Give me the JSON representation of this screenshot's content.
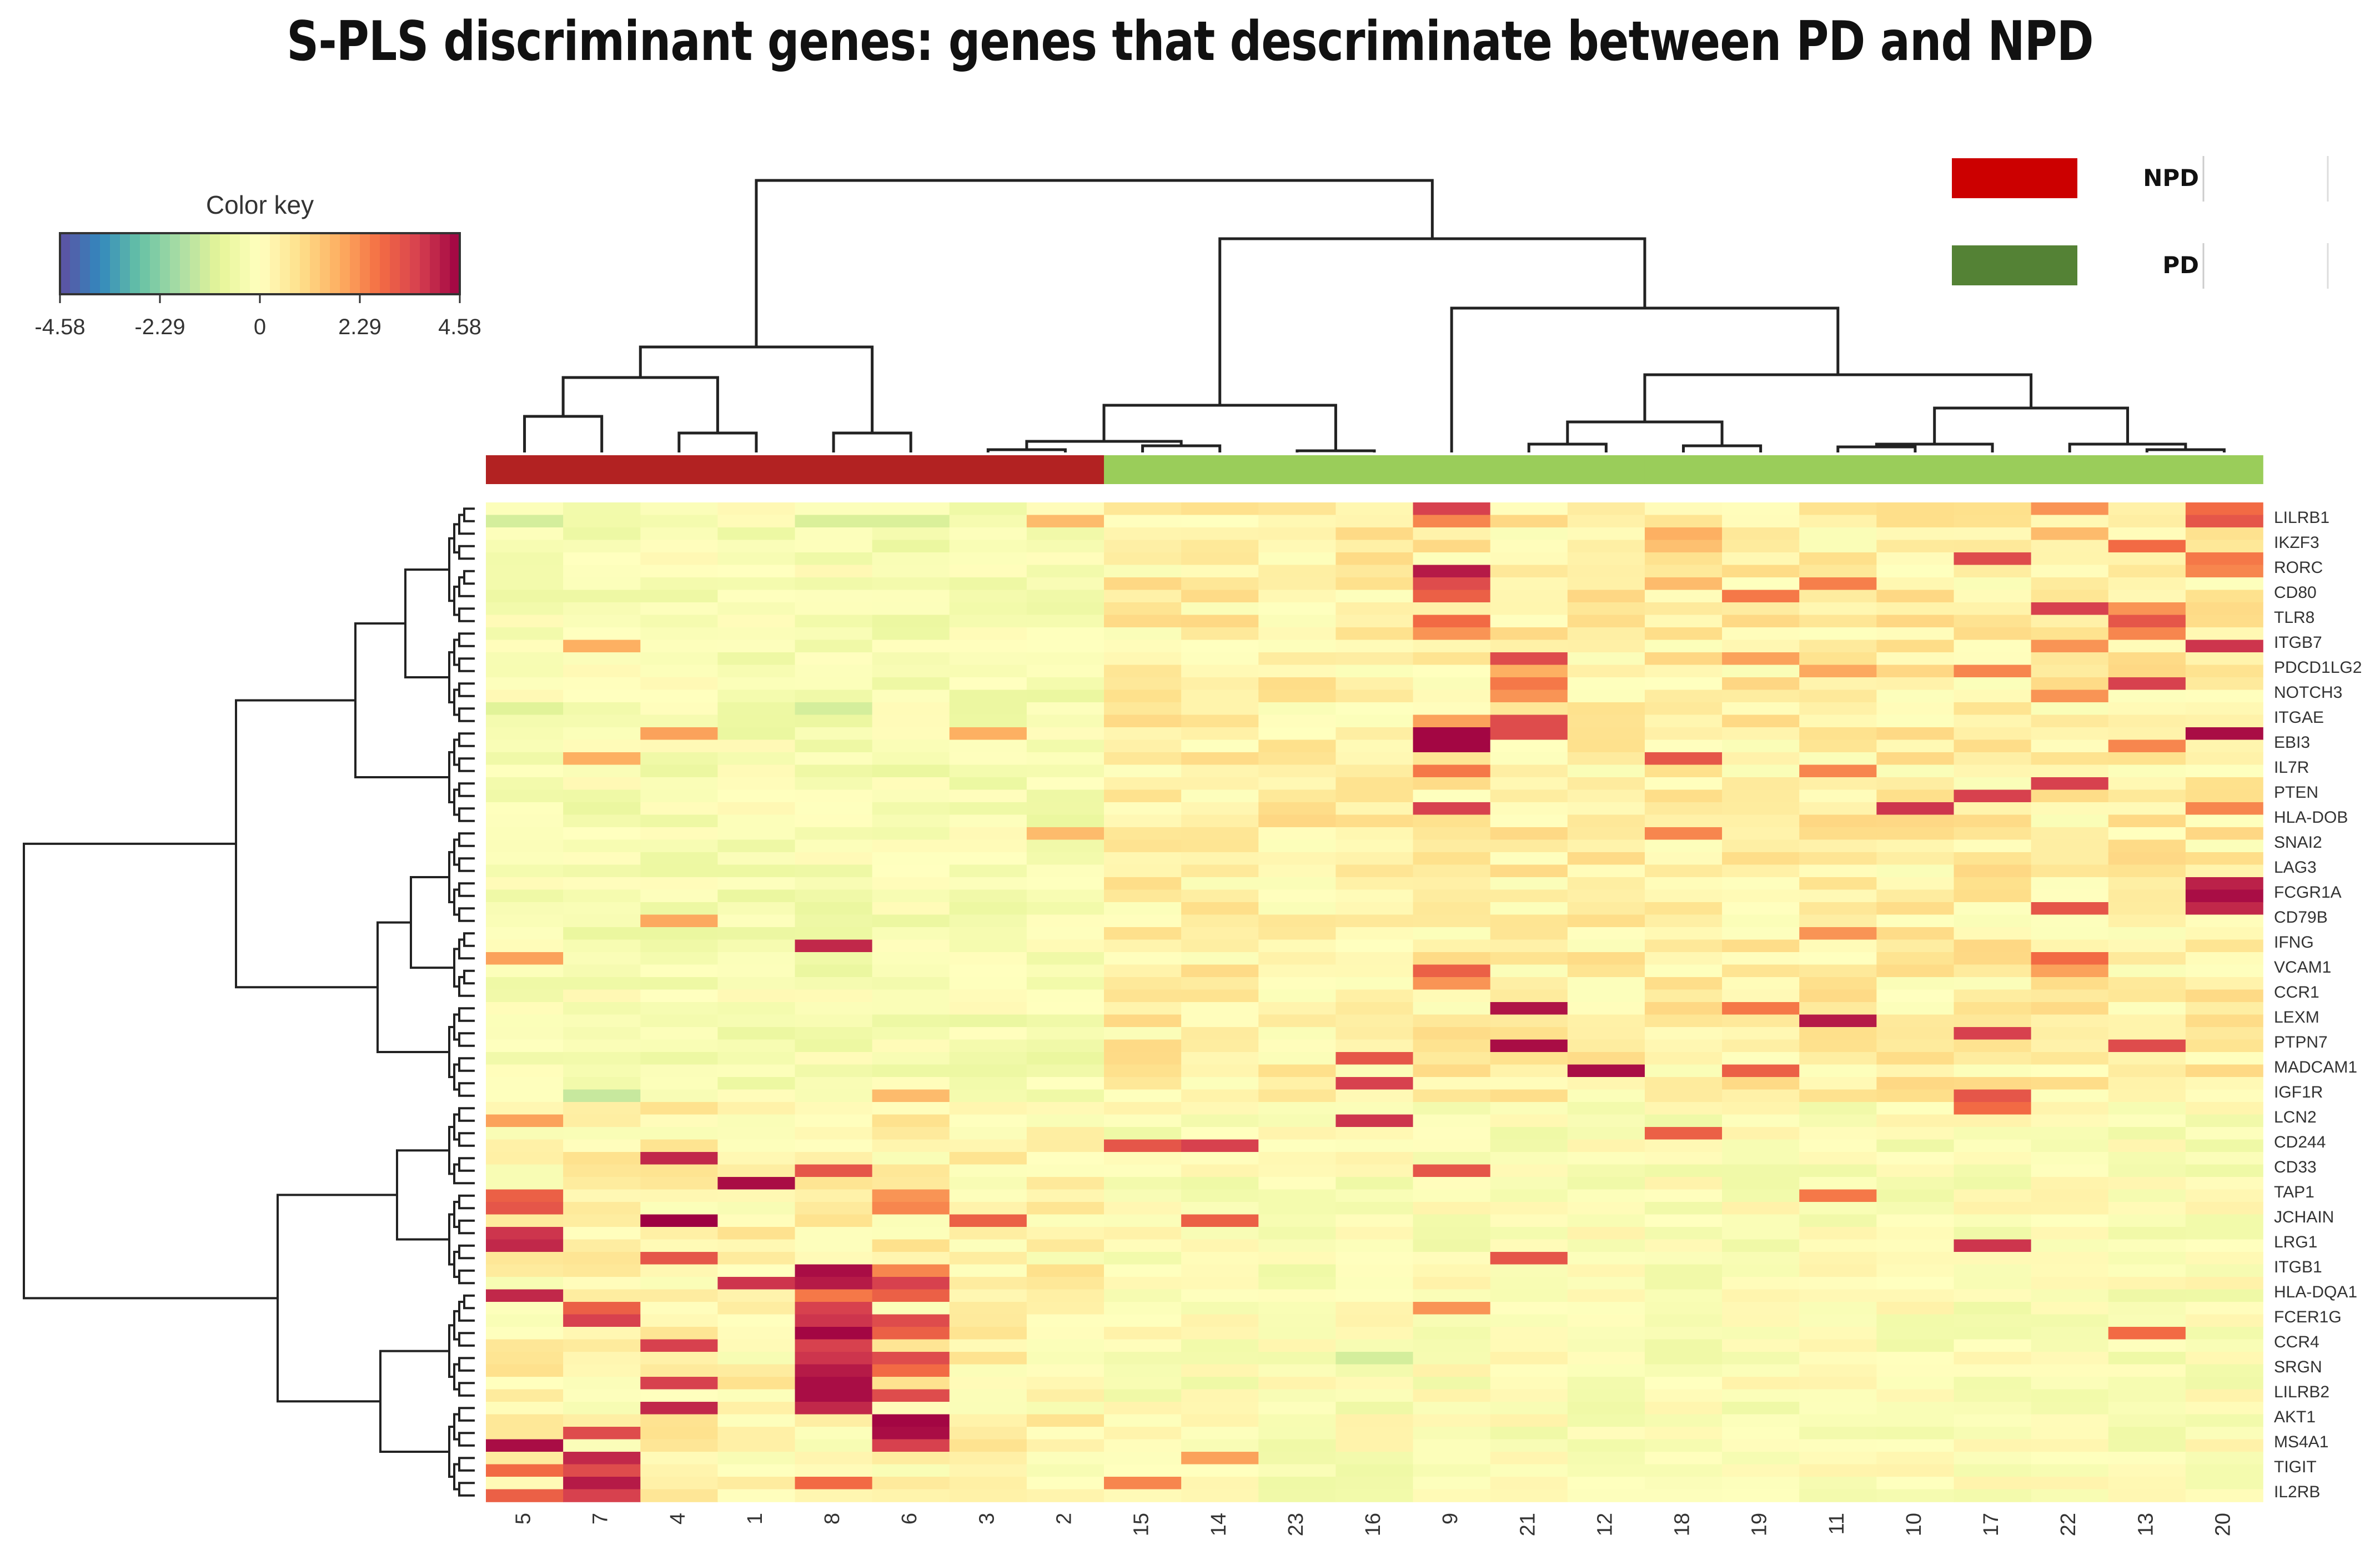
{
  "title": "S-PLS discriminant genes: genes that descriminate between PD and NPD",
  "color_key": {
    "title": "Color key",
    "ticks": [
      "-4.58",
      "-2.29",
      "0",
      "2.29",
      "4.58"
    ],
    "min": -4.58,
    "max": 4.58,
    "palette": [
      "#5e4fa2",
      "#3288bd",
      "#66c2a5",
      "#abdda4",
      "#e6f598",
      "#ffffbf",
      "#fee08b",
      "#fdae61",
      "#f46d43",
      "#d53e4f",
      "#9e0142"
    ]
  },
  "legend": {
    "items": [
      {
        "label": "NPD",
        "color": "#cc0000"
      },
      {
        "label": "PD",
        "color": "#548235"
      }
    ]
  },
  "chart_data": {
    "type": "heatmap",
    "title": "S-PLS discriminant genes: genes that descriminate between PD and NPD",
    "columns": [
      "5",
      "7",
      "4",
      "1",
      "8",
      "6",
      "3",
      "2",
      "15",
      "14",
      "23",
      "16",
      "9",
      "21",
      "12",
      "18",
      "19",
      "11",
      "10",
      "17",
      "22",
      "13",
      "20"
    ],
    "column_groups": [
      "NPD",
      "NPD",
      "NPD",
      "NPD",
      "NPD",
      "NPD",
      "NPD",
      "NPD",
      "PD",
      "PD",
      "PD",
      "PD",
      "PD",
      "PD",
      "PD",
      "PD",
      "PD",
      "PD",
      "PD",
      "PD",
      "PD",
      "PD",
      "PD"
    ],
    "group_colors": {
      "NPD": "#b22222",
      "PD": "#9acd5a"
    },
    "row_labels": [
      "LILRB1",
      "IKZF3",
      "RORC",
      "CD80",
      "TLR8",
      "ITGB7",
      "PDCD1LG2",
      "NOTCH3",
      "ITGAE",
      "EBI3",
      "IL7R",
      "PTEN",
      "HLA-DOB",
      "SNAI2",
      "LAG3",
      "FCGR1A",
      "CD79B",
      "IFNG",
      "VCAM1",
      "CCR1",
      "LEXM",
      "PTPN7",
      "MADCAM1",
      "IGF1R",
      "LCN2",
      "CD244",
      "CD33",
      "TAP1",
      "JCHAIN",
      "LRG1",
      "ITGB1",
      "HLA-DQA1",
      "FCER1G",
      "CCR4",
      "SRGN",
      "LILRB2",
      "AKT1",
      "MS4A1",
      "TIGIT",
      "IL2RB"
    ],
    "row_count": 80,
    "value_range": [
      -4.58,
      4.58
    ],
    "strong_cells": [
      {
        "row": 0,
        "col": 12,
        "value": 3.6
      },
      {
        "row": 0,
        "col": 20,
        "value": 2.2
      },
      {
        "row": 0,
        "col": 22,
        "value": 2.8
      },
      {
        "row": 1,
        "col": 0,
        "value": -1.2
      },
      {
        "row": 1,
        "col": 4,
        "value": -1.1
      },
      {
        "row": 1,
        "col": 5,
        "value": -1.1
      },
      {
        "row": 1,
        "col": 7,
        "value": 1.6
      },
      {
        "row": 1,
        "col": 12,
        "value": 2.4
      },
      {
        "row": 1,
        "col": 22,
        "value": 3.2
      },
      {
        "row": 2,
        "col": 15,
        "value": 1.8
      },
      {
        "row": 2,
        "col": 20,
        "value": 1.6
      },
      {
        "row": 3,
        "col": 21,
        "value": 2.8
      },
      {
        "row": 3,
        "col": 15,
        "value": 1.5
      },
      {
        "row": 4,
        "col": 19,
        "value": 3.4
      },
      {
        "row": 4,
        "col": 22,
        "value": 2.6
      },
      {
        "row": 5,
        "col": 12,
        "value": 4.2
      },
      {
        "row": 5,
        "col": 22,
        "value": 2.4
      },
      {
        "row": 6,
        "col": 12,
        "value": 3.4
      },
      {
        "row": 6,
        "col": 17,
        "value": 2.5
      },
      {
        "row": 6,
        "col": 15,
        "value": 1.6
      },
      {
        "row": 7,
        "col": 16,
        "value": 2.6
      },
      {
        "row": 7,
        "col": 12,
        "value": 3.0
      },
      {
        "row": 8,
        "col": 20,
        "value": 3.6
      },
      {
        "row": 8,
        "col": 21,
        "value": 2.2
      },
      {
        "row": 9,
        "col": 12,
        "value": 2.8
      },
      {
        "row": 9,
        "col": 21,
        "value": 3.2
      },
      {
        "row": 10,
        "col": 12,
        "value": 2.2
      },
      {
        "row": 10,
        "col": 21,
        "value": 2.4
      },
      {
        "row": 11,
        "col": 1,
        "value": 1.8
      },
      {
        "row": 11,
        "col": 20,
        "value": 2.2
      },
      {
        "row": 11,
        "col": 22,
        "value": 3.8
      },
      {
        "row": 12,
        "col": 13,
        "value": 3.4
      },
      {
        "row": 12,
        "col": 16,
        "value": 2.0
      },
      {
        "row": 13,
        "col": 13,
        "value": 1.8
      },
      {
        "row": 13,
        "col": 17,
        "value": 1.9
      },
      {
        "row": 13,
        "col": 19,
        "value": 2.4
      },
      {
        "row": 14,
        "col": 13,
        "value": 2.6
      },
      {
        "row": 14,
        "col": 21,
        "value": 3.6
      },
      {
        "row": 15,
        "col": 13,
        "value": 2.2
      },
      {
        "row": 15,
        "col": 20,
        "value": 2.2
      },
      {
        "row": 16,
        "col": 0,
        "value": -1.0
      },
      {
        "row": 16,
        "col": 4,
        "value": -1.2
      },
      {
        "row": 17,
        "col": 13,
        "value": 3.4
      },
      {
        "row": 17,
        "col": 12,
        "value": 2.0
      },
      {
        "row": 18,
        "col": 2,
        "value": 2.0
      },
      {
        "row": 18,
        "col": 6,
        "value": 1.8
      },
      {
        "row": 18,
        "col": 12,
        "value": 4.5
      },
      {
        "row": 18,
        "col": 13,
        "value": 3.4
      },
      {
        "row": 18,
        "col": 22,
        "value": 4.4
      },
      {
        "row": 19,
        "col": 12,
        "value": 4.5
      },
      {
        "row": 19,
        "col": 21,
        "value": 2.4
      },
      {
        "row": 20,
        "col": 1,
        "value": 1.8
      },
      {
        "row": 20,
        "col": 15,
        "value": 3.2
      },
      {
        "row": 21,
        "col": 12,
        "value": 2.6
      },
      {
        "row": 21,
        "col": 17,
        "value": 2.4
      },
      {
        "row": 22,
        "col": 20,
        "value": 3.6
      },
      {
        "row": 23,
        "col": 19,
        "value": 3.6
      },
      {
        "row": 24,
        "col": 12,
        "value": 3.6
      },
      {
        "row": 24,
        "col": 18,
        "value": 3.8
      },
      {
        "row": 24,
        "col": 22,
        "value": 2.4
      },
      {
        "row": 26,
        "col": 7,
        "value": 1.6
      },
      {
        "row": 26,
        "col": 15,
        "value": 2.4
      },
      {
        "row": 30,
        "col": 22,
        "value": 4.1
      },
      {
        "row": 31,
        "col": 22,
        "value": 4.4
      },
      {
        "row": 32,
        "col": 20,
        "value": 3.2
      },
      {
        "row": 32,
        "col": 22,
        "value": 4.0
      },
      {
        "row": 33,
        "col": 2,
        "value": 1.9
      },
      {
        "row": 34,
        "col": 17,
        "value": 2.2
      },
      {
        "row": 35,
        "col": 4,
        "value": 4.0
      },
      {
        "row": 36,
        "col": 0,
        "value": 2.0
      },
      {
        "row": 36,
        "col": 20,
        "value": 2.8
      },
      {
        "row": 37,
        "col": 12,
        "value": 3.0
      },
      {
        "row": 37,
        "col": 20,
        "value": 2.0
      },
      {
        "row": 38,
        "col": 12,
        "value": 2.2
      },
      {
        "row": 40,
        "col": 13,
        "value": 4.3
      },
      {
        "row": 40,
        "col": 16,
        "value": 2.6
      },
      {
        "row": 41,
        "col": 17,
        "value": 4.2
      },
      {
        "row": 42,
        "col": 19,
        "value": 3.6
      },
      {
        "row": 43,
        "col": 13,
        "value": 4.4
      },
      {
        "row": 43,
        "col": 21,
        "value": 3.4
      },
      {
        "row": 44,
        "col": 11,
        "value": 3.2
      },
      {
        "row": 45,
        "col": 14,
        "value": 4.4
      },
      {
        "row": 45,
        "col": 16,
        "value": 3.0
      },
      {
        "row": 46,
        "col": 11,
        "value": 3.6
      },
      {
        "row": 47,
        "col": 1,
        "value": -1.4
      },
      {
        "row": 47,
        "col": 19,
        "value": 3.2
      },
      {
        "row": 47,
        "col": 5,
        "value": 1.6
      },
      {
        "row": 48,
        "col": 19,
        "value": 2.8
      },
      {
        "row": 49,
        "col": 0,
        "value": 2.0
      },
      {
        "row": 49,
        "col": 11,
        "value": 3.8
      },
      {
        "row": 50,
        "col": 15,
        "value": 3.0
      },
      {
        "row": 51,
        "col": 8,
        "value": 3.2
      },
      {
        "row": 51,
        "col": 9,
        "value": 3.6
      },
      {
        "row": 52,
        "col": 2,
        "value": 4.0
      },
      {
        "row": 53,
        "col": 4,
        "value": 3.2
      },
      {
        "row": 53,
        "col": 12,
        "value": 3.2
      },
      {
        "row": 54,
        "col": 3,
        "value": 4.4
      },
      {
        "row": 55,
        "col": 0,
        "value": 3.0
      },
      {
        "row": 55,
        "col": 5,
        "value": 2.2
      },
      {
        "row": 55,
        "col": 17,
        "value": 2.6
      },
      {
        "row": 56,
        "col": 0,
        "value": 3.2
      },
      {
        "row": 56,
        "col": 5,
        "value": 2.4
      },
      {
        "row": 57,
        "col": 2,
        "value": 4.6
      },
      {
        "row": 57,
        "col": 6,
        "value": 3.0
      },
      {
        "row": 57,
        "col": 9,
        "value": 3.0
      },
      {
        "row": 58,
        "col": 0,
        "value": 3.8
      },
      {
        "row": 59,
        "col": 0,
        "value": 4.0
      },
      {
        "row": 59,
        "col": 19,
        "value": 3.8
      },
      {
        "row": 60,
        "col": 2,
        "value": 3.2
      },
      {
        "row": 60,
        "col": 13,
        "value": 3.2
      },
      {
        "row": 61,
        "col": 4,
        "value": 4.4
      },
      {
        "row": 61,
        "col": 5,
        "value": 2.4
      },
      {
        "row": 62,
        "col": 3,
        "value": 3.8
      },
      {
        "row": 62,
        "col": 4,
        "value": 4.2
      },
      {
        "row": 62,
        "col": 5,
        "value": 3.6
      },
      {
        "row": 63,
        "col": 0,
        "value": 4.0
      },
      {
        "row": 63,
        "col": 4,
        "value": 2.6
      },
      {
        "row": 63,
        "col": 5,
        "value": 3.0
      },
      {
        "row": 64,
        "col": 1,
        "value": 3.0
      },
      {
        "row": 64,
        "col": 4,
        "value": 3.6
      },
      {
        "row": 64,
        "col": 12,
        "value": 2.2
      },
      {
        "row": 65,
        "col": 1,
        "value": 3.6
      },
      {
        "row": 65,
        "col": 4,
        "value": 3.8
      },
      {
        "row": 65,
        "col": 5,
        "value": 3.4
      },
      {
        "row": 66,
        "col": 4,
        "value": 4.5
      },
      {
        "row": 66,
        "col": 5,
        "value": 3.0
      },
      {
        "row": 66,
        "col": 21,
        "value": 2.8
      },
      {
        "row": 67,
        "col": 2,
        "value": 3.6
      },
      {
        "row": 67,
        "col": 4,
        "value": 3.6
      },
      {
        "row": 68,
        "col": 4,
        "value": 3.8
      },
      {
        "row": 68,
        "col": 5,
        "value": 3.4
      },
      {
        "row": 68,
        "col": 11,
        "value": -1.2
      },
      {
        "row": 69,
        "col": 4,
        "value": 4.2
      },
      {
        "row": 69,
        "col": 5,
        "value": 2.8
      },
      {
        "row": 70,
        "col": 2,
        "value": 3.6
      },
      {
        "row": 70,
        "col": 4,
        "value": 4.4
      },
      {
        "row": 71,
        "col": 4,
        "value": 4.4
      },
      {
        "row": 71,
        "col": 5,
        "value": 3.4
      },
      {
        "row": 72,
        "col": 2,
        "value": 4.0
      },
      {
        "row": 72,
        "col": 4,
        "value": 4.0
      },
      {
        "row": 73,
        "col": 5,
        "value": 4.5
      },
      {
        "row": 74,
        "col": 1,
        "value": 3.4
      },
      {
        "row": 74,
        "col": 5,
        "value": 4.4
      },
      {
        "row": 75,
        "col": 0,
        "value": 4.4
      },
      {
        "row": 75,
        "col": 5,
        "value": 3.6
      },
      {
        "row": 76,
        "col": 1,
        "value": 4.0
      },
      {
        "row": 76,
        "col": 9,
        "value": 2.0
      },
      {
        "row": 77,
        "col": 0,
        "value": 2.8
      },
      {
        "row": 77,
        "col": 1,
        "value": 3.4
      },
      {
        "row": 78,
        "col": 1,
        "value": 4.2
      },
      {
        "row": 78,
        "col": 4,
        "value": 2.8
      },
      {
        "row": 78,
        "col": 8,
        "value": 2.4
      },
      {
        "row": 79,
        "col": 0,
        "value": 3.0
      },
      {
        "row": 79,
        "col": 1,
        "value": 3.6
      }
    ],
    "legend": [
      "NPD",
      "PD"
    ]
  }
}
